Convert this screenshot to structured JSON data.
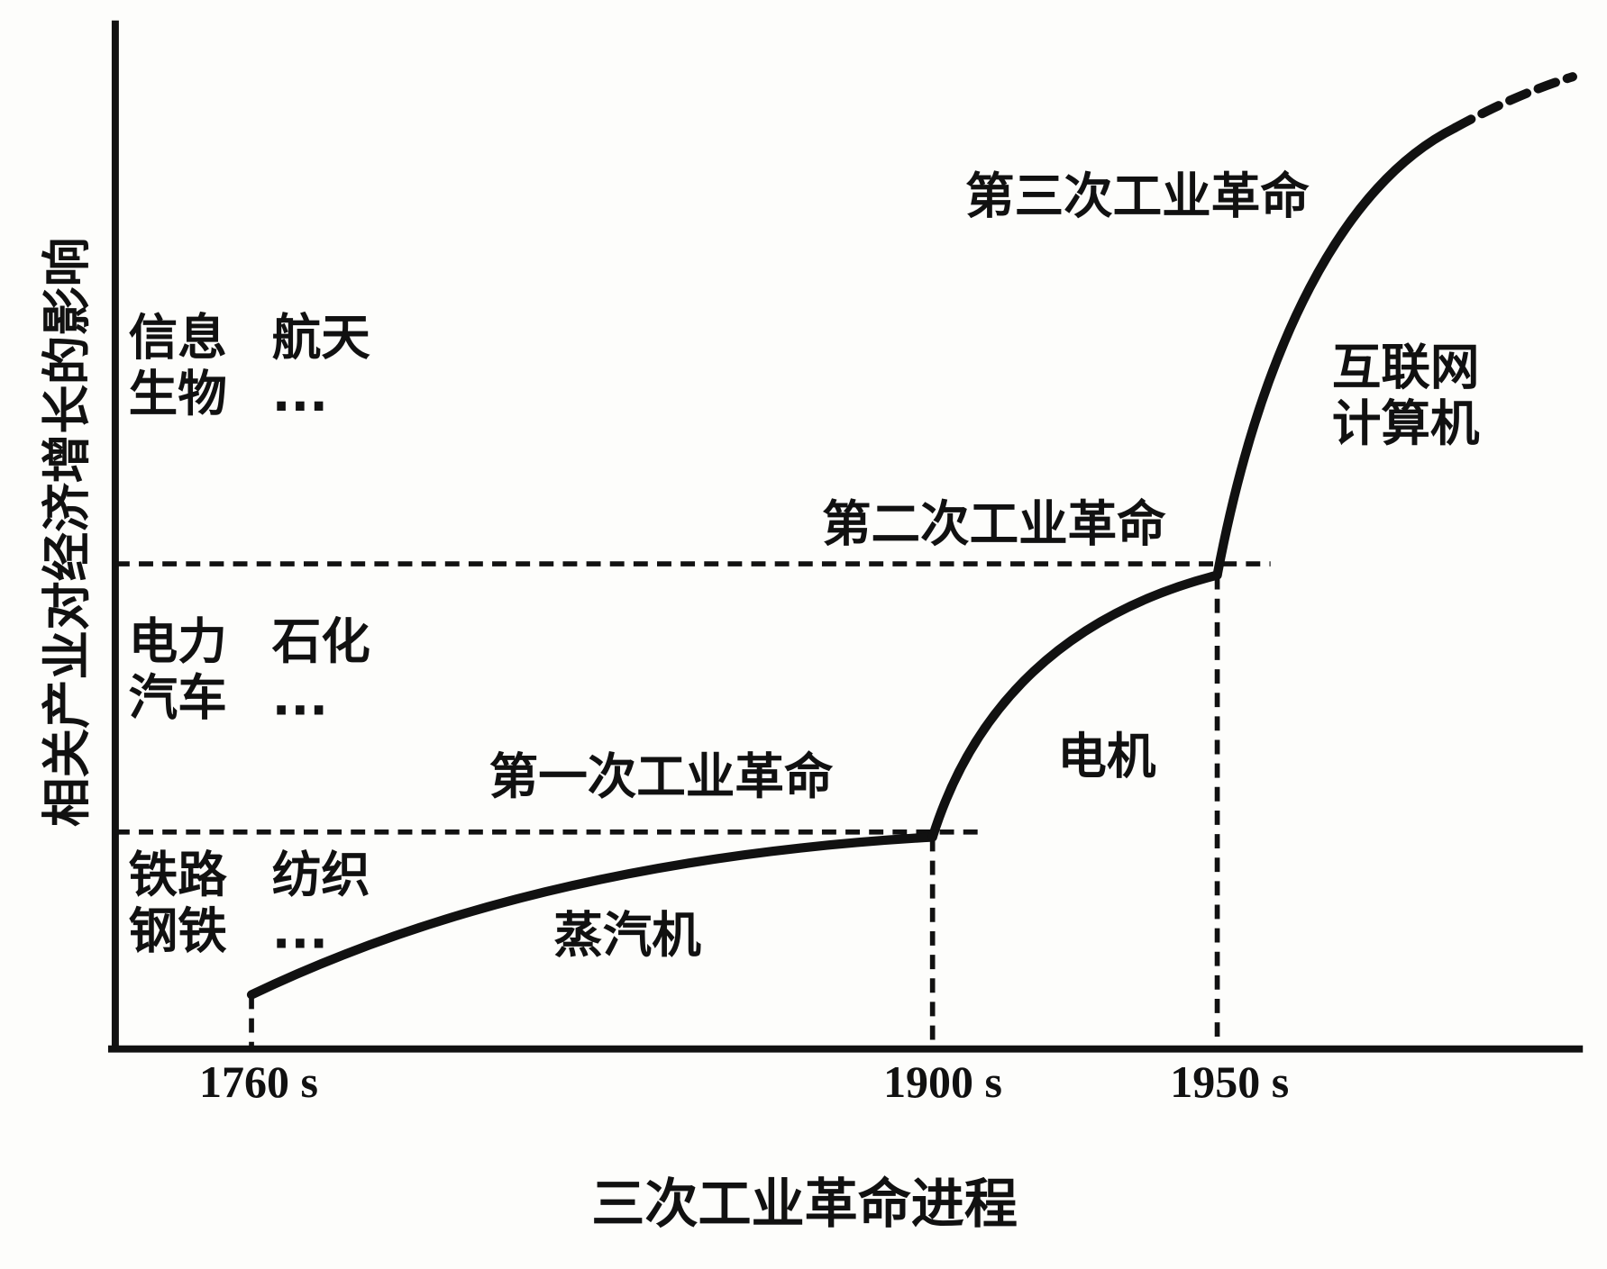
{
  "y_axis_label": "相关产业对经济增长的影响",
  "x_axis_label": "三次工业革命进程",
  "x_labels": [
    "1760 s",
    "1900 s",
    "1950 s"
  ],
  "revolutions": [
    {
      "label": "第一次工业革命",
      "technology": [
        "蒸汽机"
      ],
      "industries": [
        "铁路",
        "纺织",
        "钢铁",
        "..."
      ]
    },
    {
      "label": "第二次工业革命",
      "technology": [
        "电机"
      ],
      "industries": [
        "电力",
        "石化",
        "汽车",
        "..."
      ]
    },
    {
      "label": "第三次工业革命",
      "technology": [
        "互联网",
        "计算机"
      ],
      "industries": [
        "信息",
        "航天",
        "生物",
        "..."
      ]
    }
  ]
}
